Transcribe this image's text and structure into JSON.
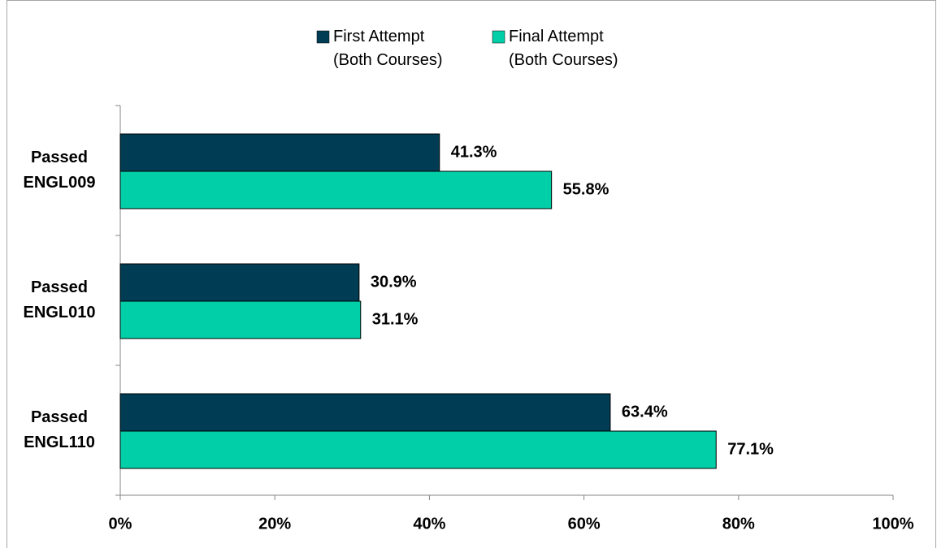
{
  "chart_data": {
    "type": "bar",
    "orientation": "horizontal",
    "categories": [
      "Passed ENGL009",
      "Passed ENGL010",
      "Passed ENGL110"
    ],
    "series": [
      {
        "name": "First Attempt (Both Courses)",
        "color": "#003d55",
        "values": [
          41.3,
          30.9,
          63.4
        ],
        "value_labels": [
          "41.3%",
          "30.9%",
          "63.4%"
        ]
      },
      {
        "name": "Final Attempt (Both Courses)",
        "color": "#00cfa8",
        "values": [
          55.8,
          31.1,
          77.1
        ],
        "value_labels": [
          "55.8%",
          "31.1%",
          "77.1%"
        ]
      }
    ],
    "xlim": [
      0,
      100
    ],
    "xticks": [
      {
        "value": 0,
        "label": "0%"
      },
      {
        "value": 20,
        "label": "20%"
      },
      {
        "value": 40,
        "label": "40%"
      },
      {
        "value": 60,
        "label": "60%"
      },
      {
        "value": 80,
        "label": "80%"
      },
      {
        "value": 100,
        "label": "100%"
      }
    ],
    "legend": "top"
  }
}
